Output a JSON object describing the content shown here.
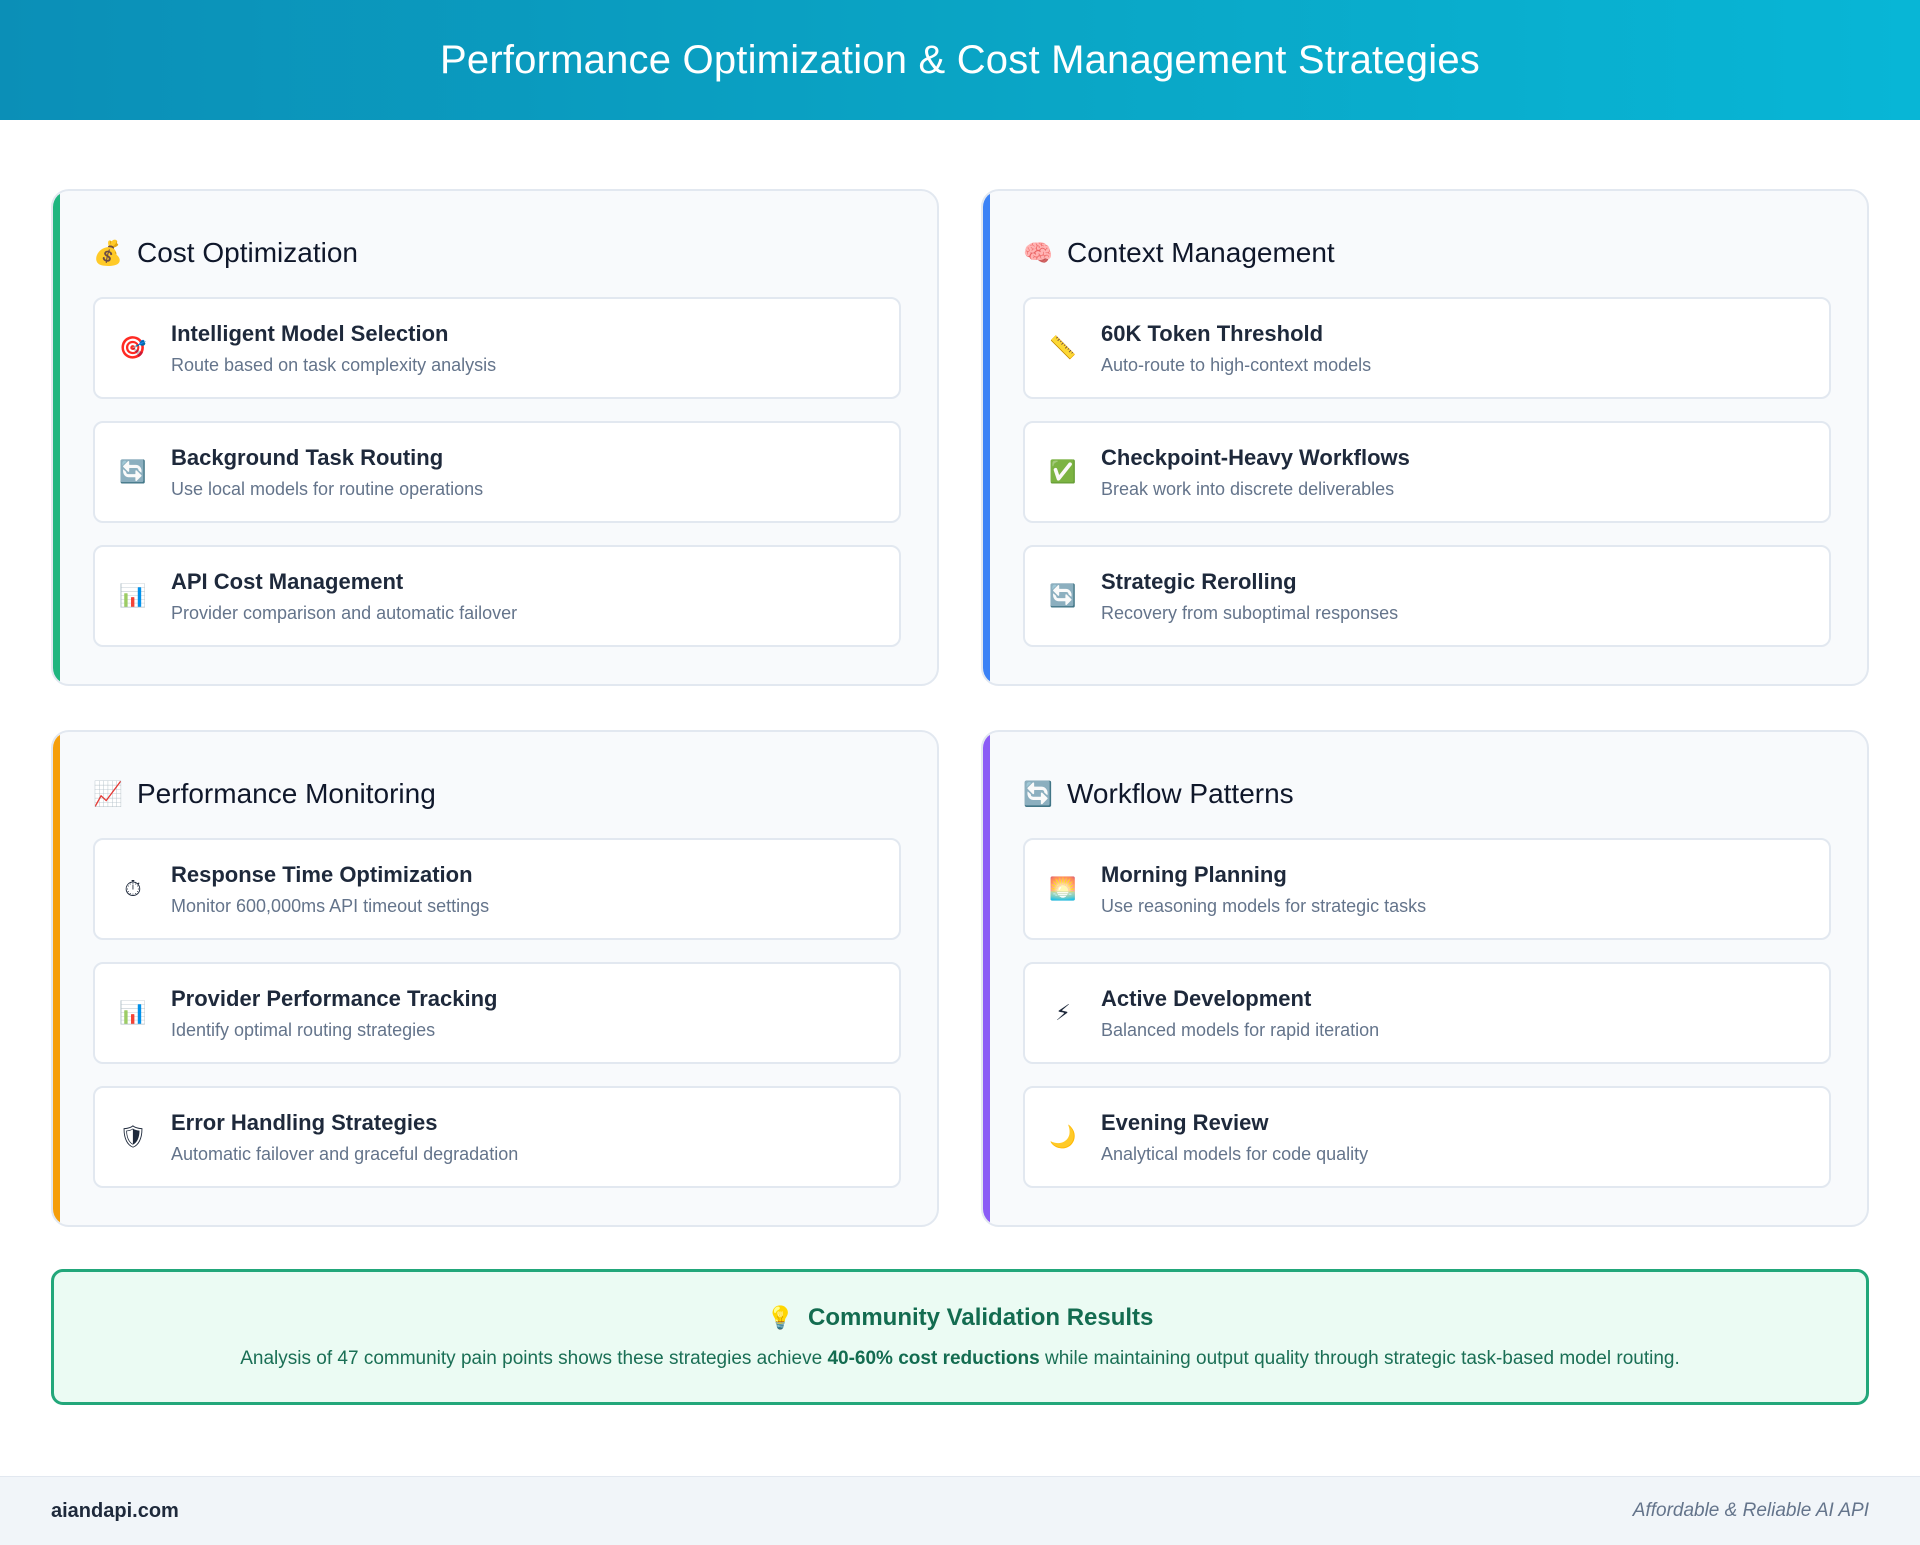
{
  "header": {
    "title": "Performance Optimization & Cost Management Strategies"
  },
  "panels": [
    {
      "title": "Cost Optimization",
      "icon": "💰",
      "icon_name": "money-bag-icon",
      "accent": "#1fb57f",
      "items": [
        {
          "icon": "🎯",
          "icon_name": "target-icon",
          "title": "Intelligent Model Selection",
          "desc": "Route based on task complexity analysis"
        },
        {
          "icon": "🔄",
          "icon_name": "refresh-icon",
          "title": "Background Task Routing",
          "desc": "Use local models for routine operations"
        },
        {
          "icon": "📊",
          "icon_name": "bar-chart-icon",
          "title": "API Cost Management",
          "desc": "Provider comparison and automatic failover"
        }
      ]
    },
    {
      "title": "Context Management",
      "icon": "🧠",
      "icon_name": "brain-icon",
      "accent": "#3b82f6",
      "items": [
        {
          "icon": "📏",
          "icon_name": "ruler-icon",
          "title": "60K Token Threshold",
          "desc": "Auto-route to high-context models"
        },
        {
          "icon": "✅",
          "icon_name": "check-box-icon",
          "title": "Checkpoint-Heavy Workflows",
          "desc": "Break work into discrete deliverables"
        },
        {
          "icon": "🔄",
          "icon_name": "refresh-icon",
          "title": "Strategic Rerolling",
          "desc": "Recovery from suboptimal responses"
        }
      ]
    },
    {
      "title": "Performance Monitoring",
      "icon": "📈",
      "icon_name": "trend-up-icon",
      "accent": "#f59e0b",
      "items": [
        {
          "icon": "⏱",
          "icon_name": "stopwatch-icon",
          "title": "Response Time Optimization",
          "desc": "Monitor 600,000ms API timeout settings"
        },
        {
          "icon": "📊",
          "icon_name": "bar-chart-icon",
          "title": "Provider Performance Tracking",
          "desc": "Identify optimal routing strategies"
        },
        {
          "icon": "🛡",
          "icon_name": "shield-icon",
          "title": "Error Handling Strategies",
          "desc": "Automatic failover and graceful degradation"
        }
      ]
    },
    {
      "title": "Workflow Patterns",
      "icon": "🔄",
      "icon_name": "refresh-icon",
      "accent": "#8b5cf6",
      "items": [
        {
          "icon": "🌅",
          "icon_name": "sunrise-icon",
          "title": "Morning Planning",
          "desc": "Use reasoning models for strategic tasks"
        },
        {
          "icon": "⚡",
          "icon_name": "lightning-icon",
          "title": "Active Development",
          "desc": "Balanced models for rapid iteration"
        },
        {
          "icon": "🌙",
          "icon_name": "moon-icon",
          "title": "Evening Review",
          "desc": "Analytical models for code quality"
        }
      ]
    }
  ],
  "banner": {
    "icon": "💡",
    "icon_name": "lightbulb-icon",
    "title": "Community Validation Results",
    "desc_before": "Analysis of 47 community pain points shows these strategies achieve ",
    "desc_bold": "40-60% cost reductions",
    "desc_after": " while maintaining output quality through strategic task-based model routing."
  },
  "footer": {
    "site": "aiandapi.com",
    "tagline": "Affordable & Reliable AI API"
  }
}
